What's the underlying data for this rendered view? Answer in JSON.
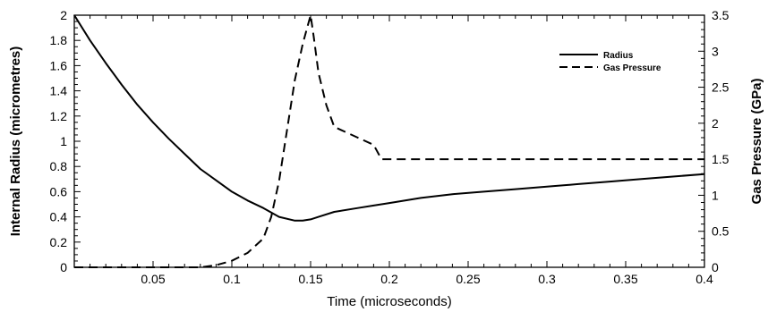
{
  "chart_data": {
    "type": "line",
    "xlabel": "Time (microseconds)",
    "ylabel_left": "Internal Radius (micrometres)",
    "ylabel_right": "Gas Pressure (GPa)",
    "xlim": [
      0,
      0.4
    ],
    "ylim_left": [
      0,
      2
    ],
    "ylim_right": [
      0,
      3.5
    ],
    "x_ticks": [
      "0.05",
      "0.1",
      "0.15",
      "0.2",
      "0.25",
      "0.3",
      "0.35",
      "0.4"
    ],
    "y_left_ticks": [
      "0",
      "0.2",
      "0.4",
      "0.6",
      "0.8",
      "1",
      "1.2",
      "1.4",
      "1.6",
      "1.8",
      "2"
    ],
    "y_right_ticks": [
      "0",
      "0.5",
      "1",
      "1.5",
      "2",
      "2.5",
      "3",
      "3.5"
    ],
    "grid": false,
    "legend_position": "top-right",
    "series": [
      {
        "name": "Radius",
        "axis": "left",
        "style": "solid",
        "x": [
          0,
          0.01,
          0.02,
          0.03,
          0.04,
          0.05,
          0.06,
          0.07,
          0.08,
          0.09,
          0.1,
          0.11,
          0.12,
          0.13,
          0.14,
          0.145,
          0.15,
          0.155,
          0.165,
          0.18,
          0.19,
          0.2,
          0.22,
          0.24,
          0.26,
          0.28,
          0.3,
          0.32,
          0.34,
          0.36,
          0.38,
          0.4
        ],
        "y": [
          2.0,
          1.8,
          1.62,
          1.45,
          1.29,
          1.15,
          1.02,
          0.9,
          0.78,
          0.69,
          0.6,
          0.53,
          0.47,
          0.4,
          0.37,
          0.37,
          0.38,
          0.4,
          0.44,
          0.47,
          0.49,
          0.51,
          0.55,
          0.58,
          0.6,
          0.62,
          0.64,
          0.66,
          0.68,
          0.7,
          0.72,
          0.74
        ]
      },
      {
        "name": "Gas Pressure",
        "axis": "right",
        "style": "dashed",
        "x": [
          0,
          0.08,
          0.09,
          0.1,
          0.11,
          0.12,
          0.125,
          0.13,
          0.135,
          0.14,
          0.145,
          0.15,
          0.152,
          0.155,
          0.16,
          0.165,
          0.18,
          0.19,
          0.195,
          0.2,
          0.25,
          0.3,
          0.35,
          0.4
        ],
        "y": [
          0,
          0,
          0.03,
          0.09,
          0.2,
          0.4,
          0.7,
          1.2,
          1.9,
          2.6,
          3.1,
          3.5,
          3.2,
          2.7,
          2.25,
          1.95,
          1.8,
          1.7,
          1.5,
          1.5,
          1.5,
          1.5,
          1.5,
          1.5
        ]
      }
    ]
  }
}
